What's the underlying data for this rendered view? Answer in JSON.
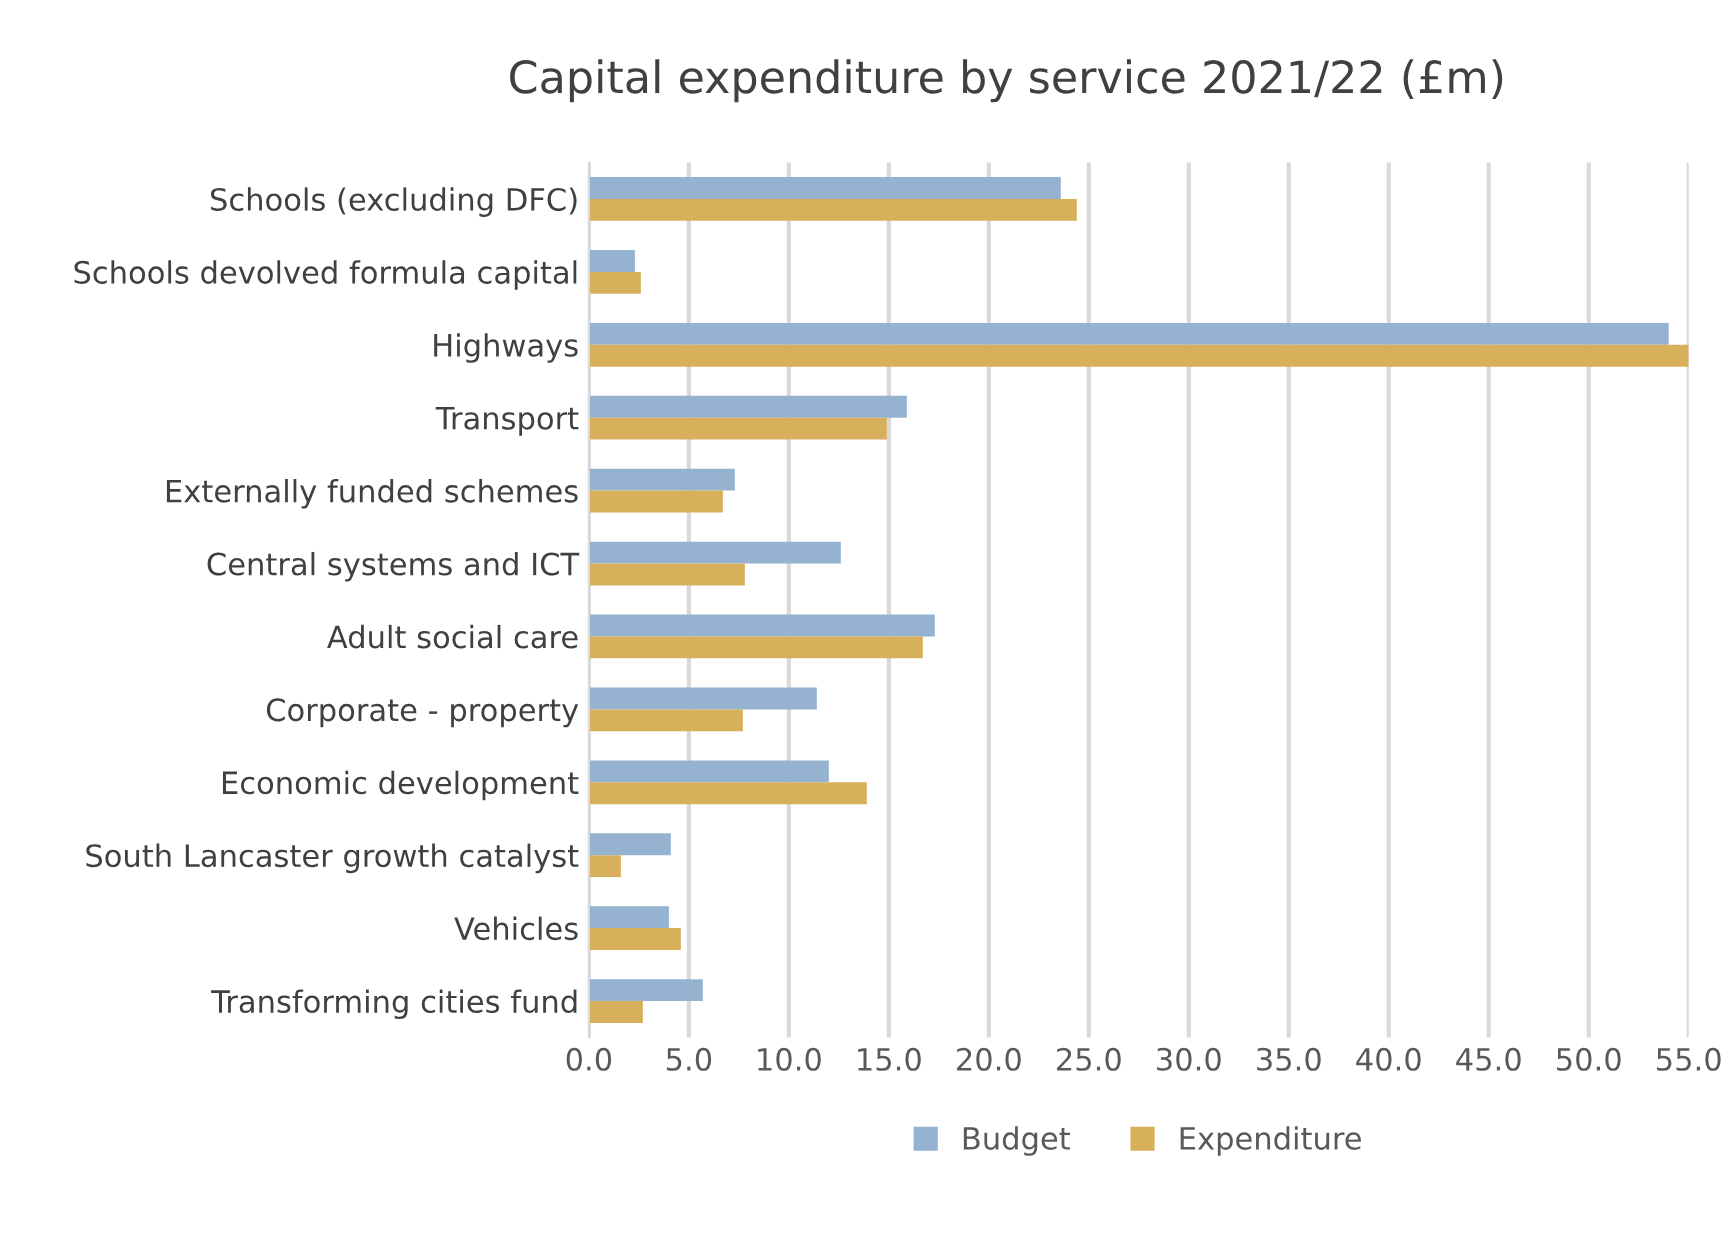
{
  "chart_data": {
    "type": "bar",
    "orientation": "horizontal",
    "title": "Capital expenditure by service 2021/22 (£m)",
    "categories": [
      "Schools (excluding DFC)",
      "Schools devolved formula capital",
      "Highways",
      "Transport",
      "Externally funded schemes",
      "Central systems and ICT",
      "Adult social care",
      "Corporate - property",
      "Economic development",
      "South Lancaster growth catalyst",
      "Vehicles",
      "Transforming cities fund"
    ],
    "series": [
      {
        "name": "Budget",
        "color": "#95b3d0",
        "values": [
          23.6,
          2.3,
          54.0,
          15.9,
          7.3,
          12.6,
          17.3,
          11.4,
          12.0,
          4.1,
          4.0,
          5.7
        ]
      },
      {
        "name": "Expenditure",
        "color": "#d8b05c",
        "values": [
          24.4,
          2.6,
          55.0,
          14.9,
          6.7,
          7.8,
          16.7,
          7.7,
          13.9,
          1.6,
          4.6,
          2.7
        ]
      }
    ],
    "xlim": [
      0,
      55
    ],
    "xticks": [
      {
        "value": 0,
        "label": "0.0"
      },
      {
        "value": 5,
        "label": "5.0"
      },
      {
        "value": 10,
        "label": "10.0"
      },
      {
        "value": 15,
        "label": "15.0"
      },
      {
        "value": 20,
        "label": "20.0"
      },
      {
        "value": 25,
        "label": "25.0"
      },
      {
        "value": 30,
        "label": "30.0"
      },
      {
        "value": 35,
        "label": "35.0"
      },
      {
        "value": 40,
        "label": "40.0"
      },
      {
        "value": 45,
        "label": "45.0"
      },
      {
        "value": 50,
        "label": "50.0"
      },
      {
        "value": 55,
        "label": "55.0"
      }
    ],
    "grid": "x",
    "legend": "bottom"
  }
}
